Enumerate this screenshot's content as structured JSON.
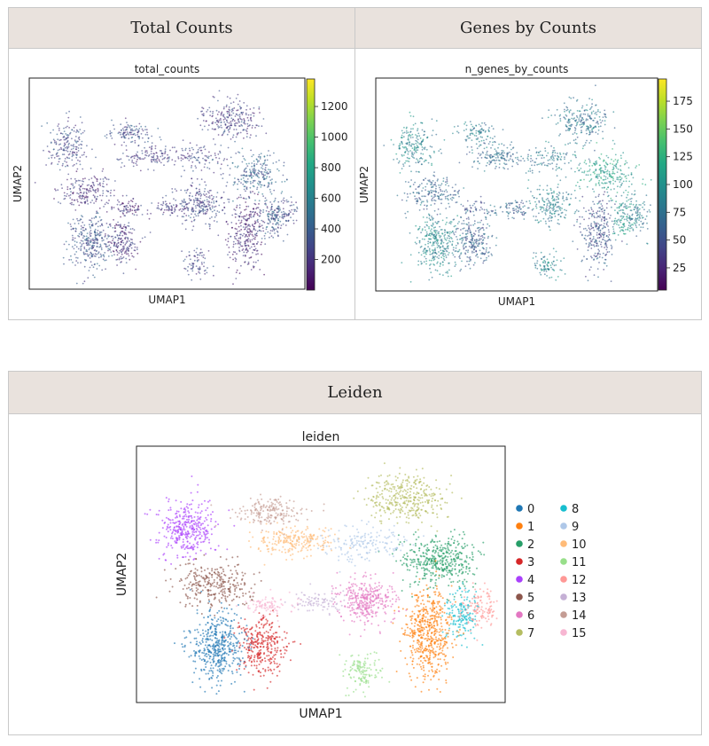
{
  "panels": {
    "total": {
      "header": "Total Counts"
    },
    "genes": {
      "header": "Genes by Counts"
    },
    "leiden": {
      "header": "Leiden"
    }
  },
  "chart_data": [
    {
      "type": "scatter",
      "title": "total_counts",
      "xlabel": "UMAP1",
      "ylabel": "UMAP2",
      "colorbar": {
        "ticks": [
          200,
          400,
          600,
          800,
          1000,
          1200
        ],
        "range": [
          0,
          1380
        ],
        "colormap": "viridis"
      }
    },
    {
      "type": "scatter",
      "title": "n_genes_by_counts",
      "xlabel": "UMAP1",
      "ylabel": "UMAP2",
      "colorbar": {
        "ticks": [
          25,
          50,
          75,
          100,
          125,
          150,
          175
        ],
        "range": [
          5,
          195
        ],
        "colormap": "viridis"
      }
    },
    {
      "type": "scatter",
      "title": "leiden",
      "xlabel": "UMAP1",
      "ylabel": "UMAP2",
      "legend_position": "right",
      "legend": [
        {
          "label": "0",
          "color": "#1f77b4"
        },
        {
          "label": "1",
          "color": "#ff7f0e"
        },
        {
          "label": "2",
          "color": "#279e68"
        },
        {
          "label": "3",
          "color": "#d62728"
        },
        {
          "label": "4",
          "color": "#aa40fc"
        },
        {
          "label": "5",
          "color": "#8c564b"
        },
        {
          "label": "6",
          "color": "#e377c2"
        },
        {
          "label": "7",
          "color": "#b5bd61"
        },
        {
          "label": "8",
          "color": "#17becf"
        },
        {
          "label": "9",
          "color": "#aec7e8"
        },
        {
          "label": "10",
          "color": "#ffbb78"
        },
        {
          "label": "11",
          "color": "#98df8a"
        },
        {
          "label": "12",
          "color": "#ff9896"
        },
        {
          "label": "13",
          "color": "#c5b0d5"
        },
        {
          "label": "14",
          "color": "#c49c94"
        },
        {
          "label": "15",
          "color": "#f7b6d2"
        }
      ]
    }
  ]
}
